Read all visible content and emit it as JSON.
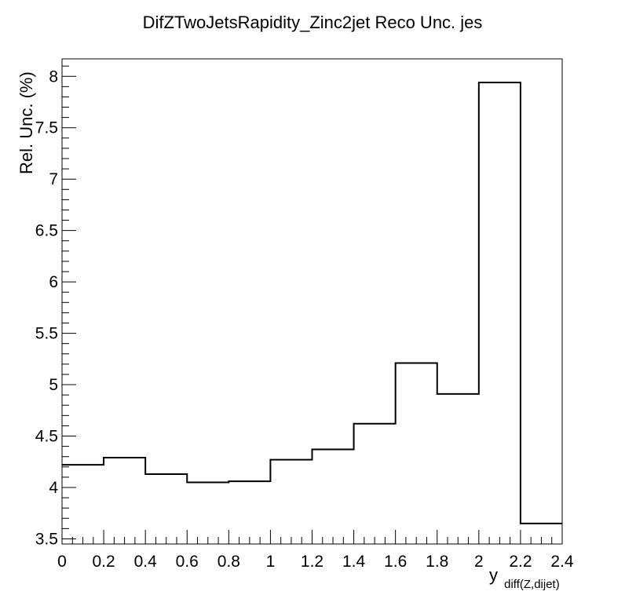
{
  "chart_data": {
    "type": "histogram",
    "title": "DifZTwoJetsRapidity_Zinc2jet Reco Unc. jes",
    "xlabel": "y",
    "xlabel_subscript": "diff(Z,dijet)",
    "ylabel": "Rel. Unc. (%)",
    "xlim": [
      0,
      2.4
    ],
    "ylim": [
      3.45,
      8.17
    ],
    "x_ticks": [
      0,
      0.2,
      0.4,
      0.6,
      0.8,
      1,
      1.2,
      1.4,
      1.6,
      1.8,
      2,
      2.2,
      2.4
    ],
    "x_tick_labels": [
      "0",
      "0.2",
      "0.4",
      "0.6",
      "0.8",
      "1",
      "1.2",
      "1.4",
      "1.6",
      "1.8",
      "2",
      "2.2",
      "2.4"
    ],
    "y_ticks": [
      3.5,
      4,
      4.5,
      5,
      5.5,
      6,
      6.5,
      7,
      7.5,
      8
    ],
    "y_tick_labels": [
      "3.5",
      "4",
      "4.5",
      "5",
      "5.5",
      "6",
      "6.5",
      "7",
      "7.5",
      "8"
    ],
    "bin_edges": [
      0,
      0.2,
      0.4,
      0.6,
      0.8,
      1.0,
      1.2,
      1.4,
      1.6,
      1.8,
      2.0,
      2.2,
      2.4
    ],
    "values": [
      4.22,
      4.29,
      4.13,
      4.05,
      4.06,
      4.27,
      4.37,
      4.62,
      5.21,
      4.91,
      7.94,
      3.65
    ],
    "grid": false,
    "legend": "none",
    "line_color": "#000000"
  }
}
